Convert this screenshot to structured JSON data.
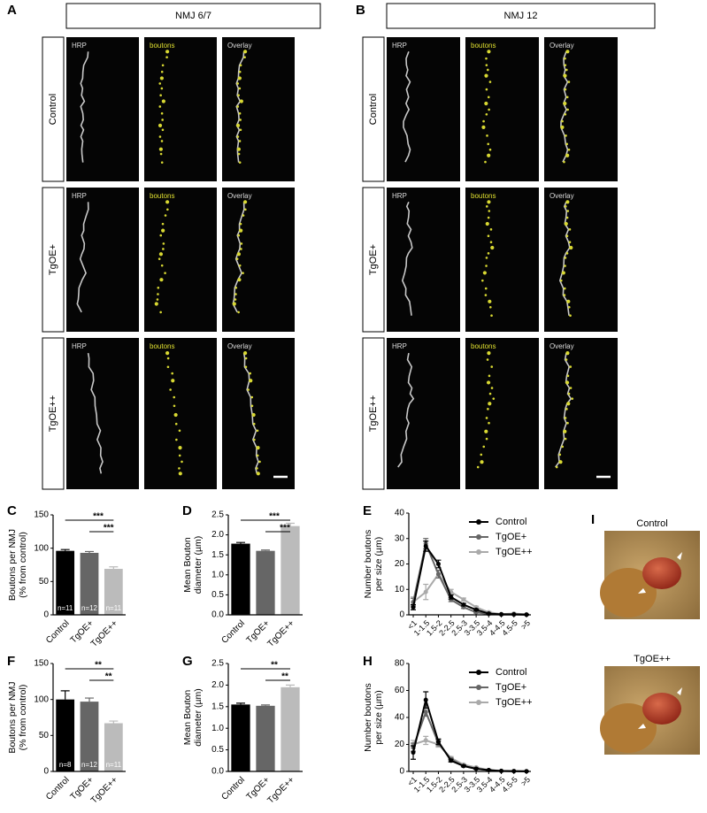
{
  "image_panels": [
    {
      "letter": "A",
      "title": "NMJ 6/7",
      "columns": [
        "HRP",
        "boutons",
        "Overlay"
      ],
      "rows": [
        "Control",
        "TgOE+",
        "TgOE++"
      ]
    },
    {
      "letter": "B",
      "title": "NMJ 12",
      "columns": [
        "HRP",
        "boutons",
        "Overlay"
      ],
      "rows": [
        "Control",
        "TgOE+",
        "TgOE++"
      ]
    }
  ],
  "chart_data": [
    {
      "letter": "C",
      "type": "bar",
      "ylabel": [
        "Boutons per NMJ",
        "(% from control)"
      ],
      "categories": [
        "Control",
        "TgOE+",
        "TgOE++"
      ],
      "values": [
        96,
        93,
        69
      ],
      "errors": [
        2,
        2,
        3
      ],
      "colors": [
        "#000000",
        "#666666",
        "#bbbbbb"
      ],
      "bar_labels": [
        "n=11",
        "n=12",
        "n=11"
      ],
      "significance": [
        {
          "between": [
            "Control",
            "TgOE++"
          ],
          "label": "***"
        },
        {
          "between": [
            "TgOE+",
            "TgOE++"
          ],
          "label": "***"
        }
      ],
      "ylim": [
        0,
        150
      ],
      "yticks": [
        0,
        50,
        100,
        150
      ]
    },
    {
      "letter": "D",
      "type": "bar",
      "ylabel": [
        "Mean Bouton",
        "diameter (µm)"
      ],
      "categories": [
        "Control",
        "TgOE+",
        "TgOE++"
      ],
      "values": [
        1.78,
        1.6,
        2.22
      ],
      "errors": [
        0.03,
        0.02,
        0.07
      ],
      "colors": [
        "#000000",
        "#666666",
        "#bbbbbb"
      ],
      "significance": [
        {
          "between": [
            "Control",
            "TgOE++"
          ],
          "label": "***"
        },
        {
          "between": [
            "TgOE+",
            "TgOE++"
          ],
          "label": "***"
        }
      ],
      "ylim": [
        0,
        2.5
      ],
      "yticks": [
        {
          "value": 0,
          "label": "0.0"
        },
        0.5,
        {
          "value": 1,
          "label": "1.0"
        },
        1.5,
        {
          "value": 2,
          "label": "2.0"
        },
        2.5
      ]
    },
    {
      "letter": "E",
      "type": "line",
      "ylabel": [
        "Number boutons",
        "per size (µm)"
      ],
      "categories": [
        "<1",
        "1-1.5",
        "1.5-2",
        "2-2.5",
        "2.5-3",
        "3-3.5",
        "3.5-4",
        "4-4.5",
        "4.5-5",
        ">5"
      ],
      "series": [
        {
          "name": "Control",
          "color": "#000000",
          "values": [
            3,
            27,
            20,
            7,
            4,
            2,
            0.5,
            0.2,
            0.2,
            0.1
          ],
          "errors": [
            1,
            2,
            1.5,
            0.8,
            0.5,
            0.3,
            0.2,
            0.1,
            0.1,
            0.1
          ]
        },
        {
          "name": "TgOE+",
          "color": "#666666",
          "values": [
            5,
            28,
            16,
            6,
            3,
            1,
            0.3,
            0.1,
            0.1,
            0
          ],
          "errors": [
            1.5,
            2,
            1.5,
            0.8,
            0.5,
            0.3,
            0.2,
            0.1,
            0.1,
            0.1
          ]
        },
        {
          "name": "TgOE++",
          "color": "#aaaaaa",
          "values": [
            5,
            9,
            16,
            9,
            6,
            3,
            1,
            0.3,
            0.5,
            0.2
          ],
          "errors": [
            2,
            3,
            1.5,
            1,
            0.6,
            0.4,
            0.3,
            0.1,
            0.2,
            0.1
          ]
        }
      ],
      "ylim": [
        0,
        40
      ],
      "yticks": [
        0,
        10,
        20,
        30,
        40
      ]
    },
    {
      "letter": "F",
      "type": "bar",
      "ylabel": [
        "Boutons per NMJ",
        "(% from control)"
      ],
      "categories": [
        "Control",
        "TgOE+",
        "TgOE++"
      ],
      "values": [
        100,
        97,
        67
      ],
      "errors": [
        12,
        5,
        3
      ],
      "colors": [
        "#000000",
        "#666666",
        "#bbbbbb"
      ],
      "bar_labels": [
        "n=8",
        "n=12",
        "n=11"
      ],
      "significance": [
        {
          "between": [
            "Control",
            "TgOE++"
          ],
          "label": "**"
        },
        {
          "between": [
            "TgOE+",
            "TgOE++"
          ],
          "label": "**"
        }
      ],
      "ylim": [
        0,
        150
      ],
      "yticks": [
        0,
        50,
        100,
        150
      ]
    },
    {
      "letter": "G",
      "type": "bar",
      "ylabel": [
        "Mean Bouton",
        "diameter (µm)"
      ],
      "categories": [
        "Control",
        "TgOE+",
        "TgOE++"
      ],
      "values": [
        1.55,
        1.52,
        1.95
      ],
      "errors": [
        0.03,
        0.02,
        0.05
      ],
      "colors": [
        "#000000",
        "#666666",
        "#bbbbbb"
      ],
      "significance": [
        {
          "between": [
            "Control",
            "TgOE++"
          ],
          "label": "**"
        },
        {
          "between": [
            "TgOE+",
            "TgOE++"
          ],
          "label": "**"
        }
      ],
      "ylim": [
        0,
        2.5
      ],
      "yticks": [
        {
          "value": 0,
          "label": "0.0"
        },
        0.5,
        {
          "value": 1,
          "label": "1.0"
        },
        1.5,
        {
          "value": 2,
          "label": "2.0"
        },
        2.5
      ]
    },
    {
      "letter": "H",
      "type": "line",
      "ylabel": [
        "Number boutons",
        "per size (µm)"
      ],
      "categories": [
        "<1",
        "1-1.5",
        "1.5-2",
        "2-2.5",
        "2.5-3",
        "3-3.5",
        "3.5-4",
        "4-4.5",
        "4.5-5",
        ">5"
      ],
      "series": [
        {
          "name": "Control",
          "color": "#000000",
          "values": [
            14,
            53,
            22,
            8,
            4,
            2,
            1,
            0.3,
            0.2,
            0.1
          ],
          "errors": [
            5,
            6,
            2,
            1,
            0.6,
            0.4,
            0.3,
            0.1,
            0.1,
            0.1
          ]
        },
        {
          "name": "TgOE+",
          "color": "#666666",
          "values": [
            18,
            44,
            21,
            9,
            4,
            2,
            1,
            0.3,
            0.2,
            0.1
          ],
          "errors": [
            3,
            3,
            2,
            1,
            0.6,
            0.4,
            0.3,
            0.1,
            0.1,
            0.1
          ]
        },
        {
          "name": "TgOE++",
          "color": "#aaaaaa",
          "values": [
            20,
            23,
            20,
            10,
            5,
            3,
            1,
            0.5,
            0.3,
            0.2
          ],
          "errors": [
            3,
            3,
            2,
            1,
            0.6,
            0.4,
            0.3,
            0.1,
            0.1,
            0.1
          ]
        }
      ],
      "ylim": [
        0,
        80
      ],
      "yticks": [
        0,
        20,
        40,
        60,
        80
      ]
    }
  ],
  "photo_panel": {
    "letter": "I",
    "labels": [
      "Control",
      "TgOE++"
    ]
  }
}
